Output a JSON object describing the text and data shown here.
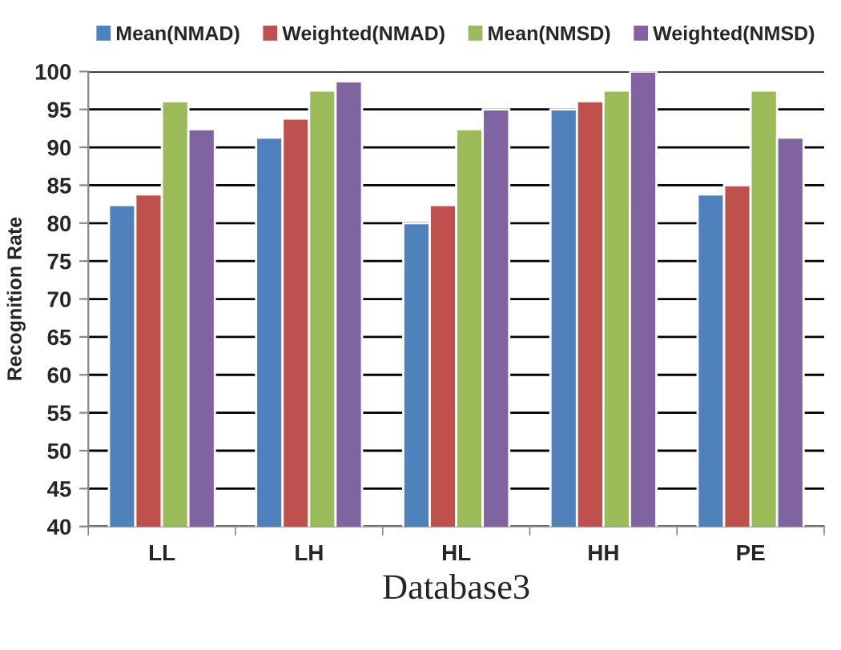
{
  "chart_data": {
    "type": "bar",
    "xlabel": "Database3",
    "ylabel": "Recognition Rate",
    "categories": [
      "LL",
      "LH",
      "HL",
      "HH",
      "PE"
    ],
    "series": [
      {
        "name": "Mean(NMAD)",
        "color": "#4f81bd",
        "values": [
          82.4,
          91.3,
          80,
          95,
          83.8
        ]
      },
      {
        "name": "Weighted(NMAD)",
        "color": "#c0504d",
        "values": [
          83.8,
          93.8,
          82.4,
          96.1,
          85
        ]
      },
      {
        "name": "Mean(NMSD)",
        "color": "#9bbb59",
        "values": [
          96.1,
          97.5,
          92.4,
          97.5,
          97.5
        ]
      },
      {
        "name": "Weighted(NMSD)",
        "color": "#8064a2",
        "values": [
          92.4,
          98.7,
          95,
          100,
          91.3
        ]
      }
    ],
    "ylim": [
      40,
      100
    ],
    "yticks": [
      40,
      45,
      50,
      55,
      60,
      65,
      70,
      75,
      80,
      85,
      90,
      95,
      100
    ],
    "grid": "y",
    "legend": "top"
  }
}
